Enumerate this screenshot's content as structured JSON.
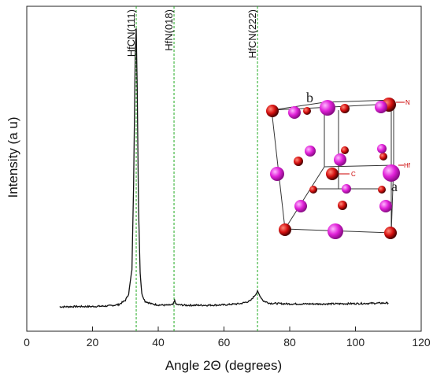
{
  "chart_data": {
    "type": "line",
    "xlabel": "Angle 2Θ (degrees)",
    "ylabel": "Intensity (a u)",
    "xlim": [
      0,
      120
    ],
    "xticks": [
      0,
      20,
      40,
      60,
      80,
      100,
      120
    ],
    "ylim": [
      0,
      100
    ],
    "grid": false,
    "series": [
      {
        "x": [
          10,
          15,
          20,
          25,
          28,
          30,
          31,
          32,
          32.5,
          33,
          33.3,
          33.6,
          34,
          34.5,
          35,
          36,
          38,
          40,
          43,
          44.5,
          45,
          45.5,
          48,
          55,
          60,
          65,
          68,
          69.5,
          70.2,
          71,
          72,
          74,
          80,
          90,
          100,
          110
        ],
        "y": [
          7.5,
          7.6,
          7.6,
          7.8,
          8.2,
          9.5,
          11.5,
          19,
          45,
          85,
          93,
          75,
          38,
          18,
          11.5,
          9.2,
          8.4,
          8.1,
          8.0,
          8.2,
          9.4,
          8.2,
          8.0,
          8.0,
          8.1,
          8.5,
          9.3,
          11.2,
          12.2,
          10.8,
          9.3,
          8.6,
          8.4,
          8.4,
          8.5,
          8.7
        ]
      }
    ],
    "reference_lines": [
      {
        "x": 33.3,
        "label": "HfCN(111)"
      },
      {
        "x": 44.8,
        "label": "HfN(018)"
      },
      {
        "x": 70.2,
        "label": "HfCN(222)"
      }
    ],
    "inset": {
      "corner_labels": [
        "b",
        "a"
      ],
      "atom_labels": [
        "N",
        "Hf",
        "C"
      ],
      "colors": {
        "hf": "#e020d8",
        "cn": "#d61010"
      }
    }
  }
}
